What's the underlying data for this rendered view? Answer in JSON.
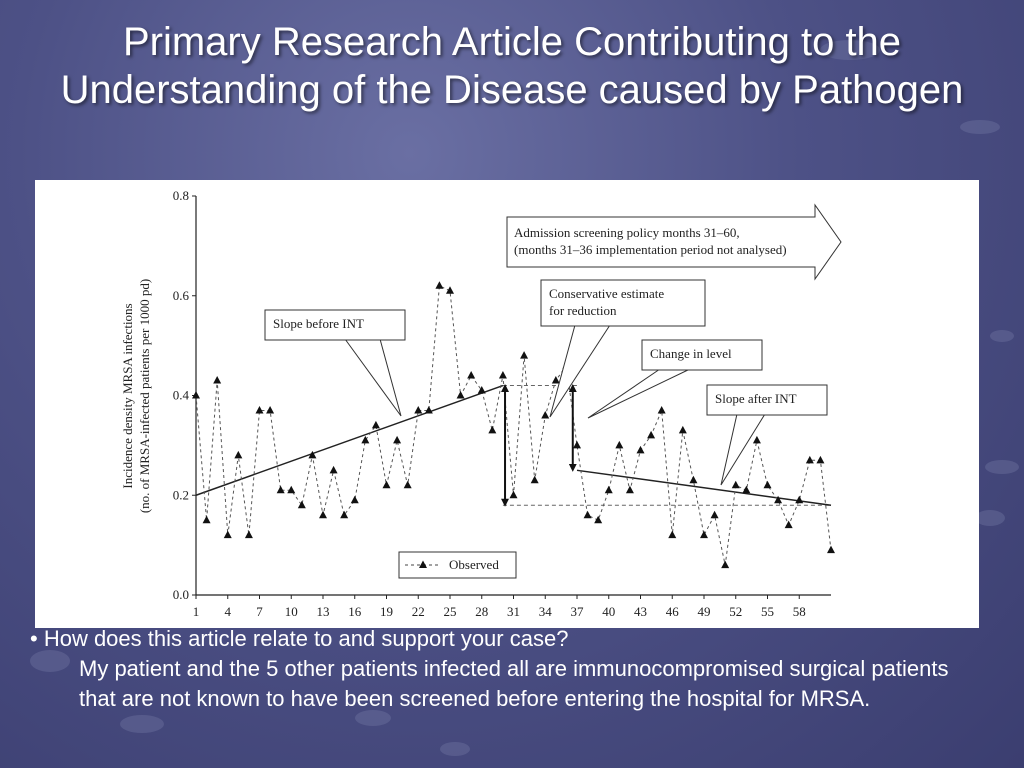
{
  "slide": {
    "title": "Primary Research Article Contributing to the Understanding of the Disease caused by Pathogen",
    "bullet": "• How does this article relate to and support your case?",
    "answer": "My patient and the 5 other patients infected all are immunocompromised surgical patients that are not known to have been screened before entering the hospital for MRSA."
  },
  "chart_data": {
    "type": "line",
    "title": "",
    "xlabel": "",
    "ylabel": "Incidence density MRSA infections",
    "ylabel2": "(no. of MRSA-infected patients per 1000 pd)",
    "xlim": [
      1,
      61
    ],
    "ylim": [
      0,
      0.8
    ],
    "yticks": [
      "0.0",
      "0.2",
      "0.4",
      "0.6",
      "0.8"
    ],
    "xticks": [
      "1",
      "4",
      "7",
      "10",
      "13",
      "16",
      "19",
      "22",
      "25",
      "28",
      "31",
      "34",
      "37",
      "40",
      "43",
      "46",
      "49",
      "52",
      "55",
      "58"
    ],
    "grid": false,
    "legend": {
      "position": "bottom-center",
      "entries": [
        "Observed"
      ]
    },
    "series": [
      {
        "name": "Observed",
        "style": "dashed-triangle",
        "x": [
          1,
          2,
          3,
          4,
          5,
          6,
          7,
          8,
          9,
          10,
          11,
          12,
          13,
          14,
          15,
          16,
          17,
          18,
          19,
          20,
          21,
          22,
          23,
          24,
          25,
          26,
          27,
          28,
          29,
          30,
          31,
          32,
          33,
          34,
          35,
          36,
          37,
          38,
          39,
          40,
          41,
          42,
          43,
          44,
          45,
          46,
          47,
          48,
          49,
          50,
          51,
          52,
          53,
          54,
          55,
          56,
          57,
          58,
          59,
          60,
          61
        ],
        "values": [
          0.4,
          0.15,
          0.43,
          0.12,
          0.28,
          0.12,
          0.37,
          0.37,
          0.21,
          0.21,
          0.18,
          0.28,
          0.16,
          0.25,
          0.16,
          0.19,
          0.31,
          0.34,
          0.22,
          0.31,
          0.22,
          0.37,
          0.37,
          0.62,
          0.61,
          0.4,
          0.44,
          0.41,
          0.33,
          0.44,
          0.2,
          0.48,
          0.23,
          0.36,
          0.43,
          0.46,
          0.3,
          0.16,
          0.15,
          0.21,
          0.3,
          0.21,
          0.29,
          0.32,
          0.37,
          0.12,
          0.33,
          0.23,
          0.12,
          0.16,
          0.06,
          0.22,
          0.21,
          0.31,
          0.22,
          0.19,
          0.14,
          0.19,
          0.27,
          0.27,
          0.09
        ]
      }
    ],
    "trend_lines": [
      {
        "name": "Slope before INT",
        "x": [
          1,
          30
        ],
        "values": [
          0.2,
          0.42
        ]
      },
      {
        "name": "Slope after INT",
        "x": [
          37,
          61
        ],
        "values": [
          0.25,
          0.18
        ]
      }
    ],
    "reference_lines": [
      {
        "x": [
          30,
          37
        ],
        "values": [
          0.42,
          0.42
        ]
      },
      {
        "x": [
          30,
          61
        ],
        "values": [
          0.18,
          0.18
        ]
      }
    ],
    "annotations": {
      "admission": [
        "Admission screening policy months 31–60,",
        "(months 31–36 implementation period not analysed)"
      ],
      "conservative": [
        "Conservative estimate",
        "for reduction"
      ],
      "change_level": "Change in level",
      "slope_before": "Slope before INT",
      "slope_after": "Slope after INT"
    },
    "colors": {
      "series": "#222222",
      "dashed": "#555555",
      "box": "#333333"
    }
  }
}
